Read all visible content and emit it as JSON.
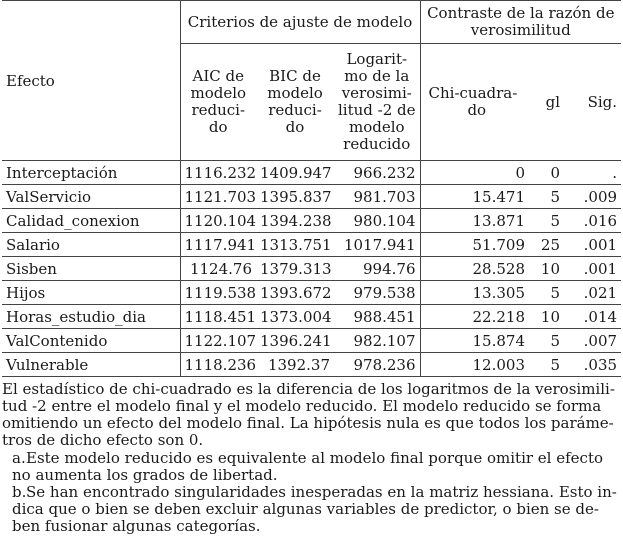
{
  "table": {
    "group_headers": {
      "efecto": "Efecto",
      "fit_criteria": "Criterios de ajuste de modelo",
      "lr_test": "Contraste de la razón de verosimilitud"
    },
    "columns": {
      "aic": [
        "AIC de",
        "modelo",
        "reduci-",
        "do"
      ],
      "bic": [
        "BIC de",
        "modelo",
        "reduci-",
        "do"
      ],
      "loglik": [
        "Logarit-",
        "mo de la",
        "verosimi-",
        "litud -2 de",
        "modelo",
        "reducido"
      ],
      "chi": [
        "Chi-cuadra-",
        "do"
      ],
      "gl": "gl",
      "sig": "Sig."
    },
    "rows": [
      {
        "efecto": "Interceptación",
        "aic": "1116.232",
        "bic": "1409.947",
        "loglik": "966.232",
        "chi": "0",
        "gl": "0",
        "sig": "."
      },
      {
        "efecto": "ValServicio",
        "aic": "1121.703",
        "bic": "1395.837",
        "loglik": "981.703",
        "chi": "15.471",
        "gl": "5",
        "sig": ".009"
      },
      {
        "efecto": "Calidad_conexion",
        "aic": "1120.104",
        "bic": "1394.238",
        "loglik": "980.104",
        "chi": "13.871",
        "gl": "5",
        "sig": ".016"
      },
      {
        "efecto": "Salario",
        "aic": "1117.941",
        "bic": "1313.751",
        "loglik": "1017.941",
        "chi": "51.709",
        "gl": "25",
        "sig": ".001"
      },
      {
        "efecto": "Sisben",
        "aic": "1124.76",
        "bic": "1379.313",
        "loglik": "994.76",
        "chi": "28.528",
        "gl": "10",
        "sig": ".001"
      },
      {
        "efecto": "Hijos",
        "aic": "1119.538",
        "bic": "1393.672",
        "loglik": "979.538",
        "chi": "13.305",
        "gl": "5",
        "sig": ".021"
      },
      {
        "efecto": "Horas_estudio_dia",
        "aic": "1118.451",
        "bic": "1373.004",
        "loglik": "988.451",
        "chi": "22.218",
        "gl": "10",
        "sig": ".014"
      },
      {
        "efecto": "ValContenido",
        "aic": "1122.107",
        "bic": "1396.241",
        "loglik": "982.107",
        "chi": "15.874",
        "gl": "5",
        "sig": ".007"
      },
      {
        "efecto": "Vulnerable",
        "aic": "1118.236",
        "bic": "1392.37",
        "loglik": "978.236",
        "chi": "12.003",
        "gl": "5",
        "sig": ".035"
      }
    ]
  },
  "notes": {
    "main": "El estadístico de chi-cuadrado es la diferencia de los logaritmos de la verosimili-tud -2 entre el modelo final y el modelo reducido. El modelo reducido se forma omitiendo un efecto del modelo final. La hipótesis nula es que todos los paráme-tros de dicho efecto son 0.",
    "footnote_a_label": "a.",
    "footnote_a": "Este modelo reducido es equivalente al modelo final porque omitir el efecto no aumenta los grados de libertad.",
    "footnote_b_label": "b.",
    "footnote_b": "Se han encontrado singularidades inesperadas en la matriz hessiana. Esto in-dica que o bien se deben excluir algunas variables de predictor, o bien se de-ben fusionar algunas categorías."
  }
}
